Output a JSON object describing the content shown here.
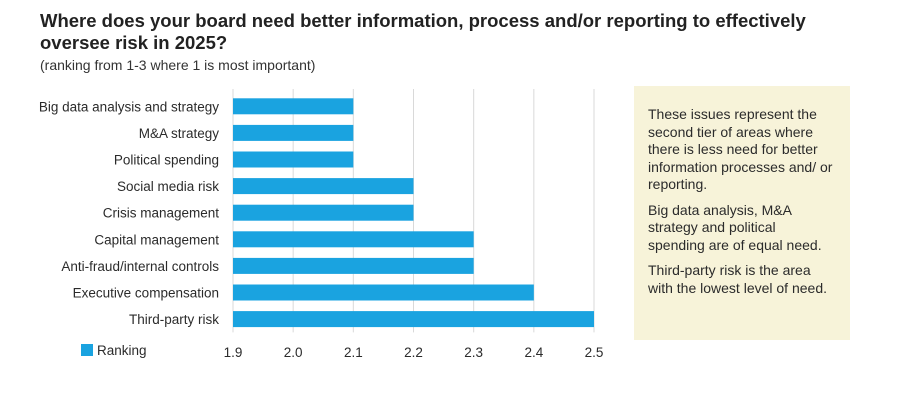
{
  "title": "Where does your board need better information, process and/or reporting to effectively oversee risk in 2025?",
  "subtitle": "(ranking from 1-3 where 1 is most important)",
  "note": {
    "paragraphs": [
      "These issues represent the second tier of areas where there is less need for better information processes and/ or reporting.",
      "Big data analysis, M&A strategy and political spending are of equal need.",
      "Third-party risk is the area with the lowest level of need."
    ]
  },
  "colors": {
    "bar": "#1aa3e0",
    "grid": "#d9d9d9",
    "note_bg": "#f7f3d9"
  },
  "chart_data": {
    "type": "bar",
    "orientation": "horizontal",
    "categories": [
      "Big data analysis and strategy",
      "M&A strategy",
      "Political spending",
      "Social media risk",
      "Crisis management",
      "Capital management",
      "Anti-fraud/internal controls",
      "Executive compensation",
      "Third-party risk"
    ],
    "series": [
      {
        "name": "Ranking",
        "values": [
          2.1,
          2.1,
          2.1,
          2.2,
          2.2,
          2.3,
          2.3,
          2.4,
          2.5
        ]
      }
    ],
    "xlim": [
      1.9,
      2.5
    ],
    "xticks": [
      "1.9",
      "2.0",
      "2.1",
      "2.2",
      "2.3",
      "2.4",
      "2.5"
    ],
    "grid": true,
    "legend": "bottom-left"
  }
}
